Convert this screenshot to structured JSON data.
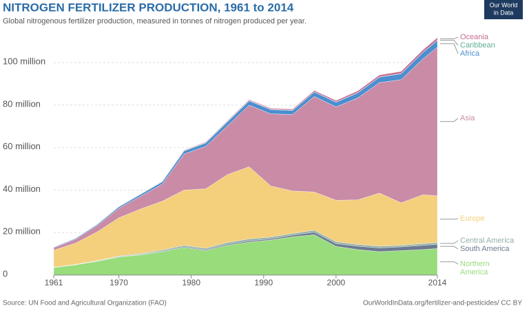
{
  "chart_data": {
    "type": "stacked-area",
    "title": "NITROGEN FERTILIZER PRODUCTION, 1961 to 2014",
    "subtitle": "Global nitrogenous fertilizer production, measured in tonnes of nitrogen produced per year.",
    "source": "Source: UN Food and Agricultural Organization (FAO)",
    "url": "OurWorldInData.org/fertilizer-and-pesticides/ CC BY",
    "logo": [
      "Our World",
      "in Data"
    ],
    "x": [
      1961,
      1964,
      1967,
      1970,
      1973,
      1976,
      1979,
      1982,
      1985,
      1988,
      1991,
      1994,
      1997,
      2000,
      2003,
      2006,
      2009,
      2012,
      2014
    ],
    "xlim": [
      1961,
      2014
    ],
    "xticks": [
      1961,
      1970,
      1980,
      1990,
      2000,
      2014
    ],
    "ylim": [
      0,
      113000000
    ],
    "yticks": [
      0,
      {
        "value": 20000000,
        "label": "20 million"
      },
      {
        "value": 40000000,
        "label": "40 million"
      },
      {
        "value": 60000000,
        "label": "60 million"
      },
      {
        "value": 80000000,
        "label": "80 million"
      },
      {
        "value": 100000000,
        "label": "100 million"
      }
    ],
    "grid": true,
    "series": [
      {
        "name": "Northern America",
        "color": "#98dc7c",
        "values": [
          3500000,
          4800000,
          6500000,
          8500000,
          9500000,
          11000000,
          13000000,
          11500000,
          14000000,
          15500000,
          16500000,
          18000000,
          19000000,
          13500000,
          12000000,
          11000000,
          11500000,
          12000000,
          12500000
        ]
      },
      {
        "name": "South America",
        "color": "#6d7b90",
        "values": [
          50000,
          80000,
          100000,
          150000,
          200000,
          300000,
          400000,
          400000,
          500000,
          600000,
          600000,
          800000,
          1200000,
          1300000,
          1600000,
          1800000,
          1800000,
          2000000,
          2000000
        ]
      },
      {
        "name": "Central America",
        "color": "#8fb0a6",
        "values": [
          100000,
          150000,
          200000,
          300000,
          400000,
          500000,
          600000,
          700000,
          800000,
          900000,
          800000,
          800000,
          900000,
          900000,
          800000,
          800000,
          700000,
          800000,
          800000
        ]
      },
      {
        "name": "Europe",
        "color": "#f4cf7c",
        "values": [
          8000000,
          10000000,
          13500000,
          18000000,
          21000000,
          23000000,
          26000000,
          28000000,
          32000000,
          34000000,
          24000000,
          20000000,
          18000000,
          19500000,
          21000000,
          25000000,
          20000000,
          23000000,
          22000000
        ]
      },
      {
        "name": "Asia",
        "color": "#c98ba6",
        "values": [
          1200000,
          1800000,
          3000000,
          4500000,
          6000000,
          8000000,
          17000000,
          20000000,
          23000000,
          29000000,
          34000000,
          36000000,
          45000000,
          44000000,
          48000000,
          52000000,
          58000000,
          64000000,
          70000000
        ]
      },
      {
        "name": "Africa",
        "color": "#4b8fd0",
        "values": [
          300000,
          400000,
          500000,
          700000,
          900000,
          1100000,
          1400000,
          1600000,
          1800000,
          2000000,
          2000000,
          1900000,
          2100000,
          2200000,
          2400000,
          2600000,
          2800000,
          3000000,
          3200000
        ]
      },
      {
        "name": "Caribbean",
        "color": "#5fae8f",
        "values": [
          50000,
          60000,
          80000,
          100000,
          120000,
          150000,
          180000,
          200000,
          200000,
          200000,
          150000,
          120000,
          100000,
          100000,
          100000,
          100000,
          100000,
          100000,
          100000
        ]
      },
      {
        "name": "Oceania",
        "color": "#c46a90",
        "values": [
          50000,
          60000,
          80000,
          100000,
          150000,
          200000,
          250000,
          300000,
          350000,
          400000,
          450000,
          500000,
          600000,
          700000,
          800000,
          900000,
          1000000,
          1100000,
          1200000
        ]
      }
    ]
  }
}
